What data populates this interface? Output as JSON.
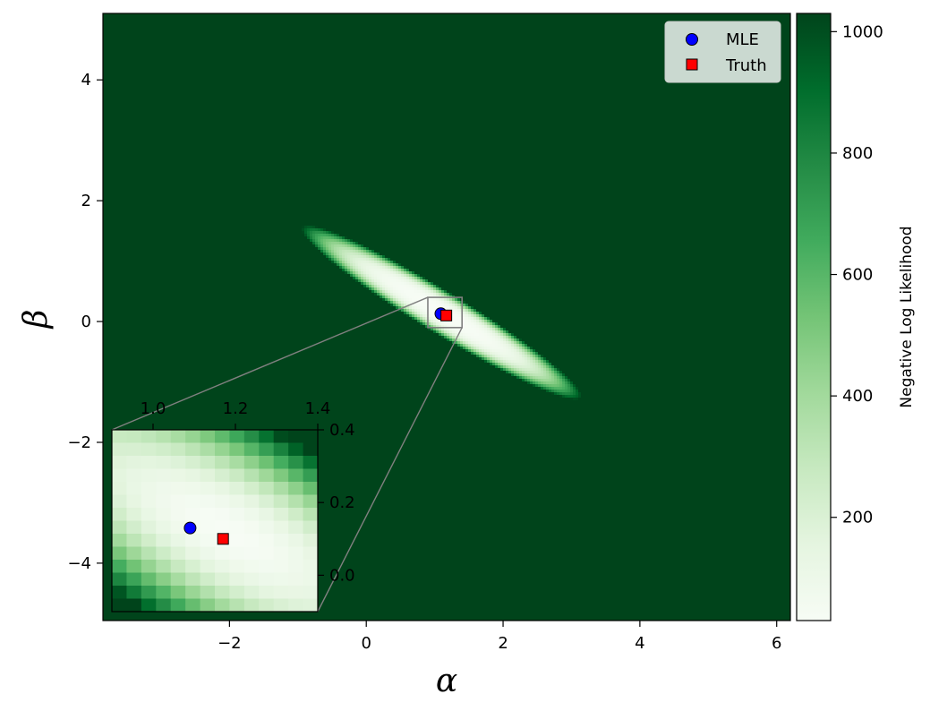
{
  "chart_data": {
    "type": "heatmap",
    "title": "",
    "xlabel": "α",
    "ylabel": "β",
    "xlim": [
      -3.85,
      6.2
    ],
    "ylim": [
      -4.95,
      5.1
    ],
    "xticks": [
      -2,
      0,
      2,
      4,
      6
    ],
    "yticks": [
      -4,
      -2,
      0,
      2,
      4
    ],
    "xtick_labels": [
      "−2",
      "0",
      "2",
      "4",
      "6"
    ],
    "ytick_labels": [
      "−4",
      "−2",
      "0",
      "2",
      "4"
    ],
    "colormap": "Greens",
    "colorbar": {
      "label": "Negative Log Likelihood",
      "range": [
        30,
        1030
      ],
      "ticks": [
        200,
        400,
        600,
        800,
        1000
      ],
      "tick_labels": [
        "200",
        "400",
        "600",
        "800",
        "1000"
      ]
    },
    "surface": {
      "min_value": 30,
      "max_value": 1030,
      "center": [
        1.1,
        0.15
      ],
      "shape": "elongated valley along the line β ≈ −0.7(α − 1.1)"
    },
    "series": [
      {
        "name": "MLE",
        "marker": "circle",
        "color": "#0000ff",
        "x": 1.09,
        "y": 0.13
      },
      {
        "name": "Truth",
        "marker": "square",
        "color": "#ff0000",
        "x": 1.17,
        "y": 0.1
      }
    ],
    "legend": {
      "position": "top-right",
      "entries": [
        "MLE",
        "Truth"
      ]
    },
    "inset": {
      "xlim": [
        0.9,
        1.4
      ],
      "ylim": [
        -0.1,
        0.4
      ],
      "xticks": [
        1.0,
        1.2,
        1.4
      ],
      "yticks": [
        0.0,
        0.2,
        0.4
      ],
      "xtick_labels": [
        "1.0",
        "1.2",
        "1.4"
      ],
      "ytick_labels": [
        "0.0",
        "0.2",
        "0.4"
      ],
      "grid_cells": 14,
      "position": "bottom-left"
    },
    "grid": false
  }
}
